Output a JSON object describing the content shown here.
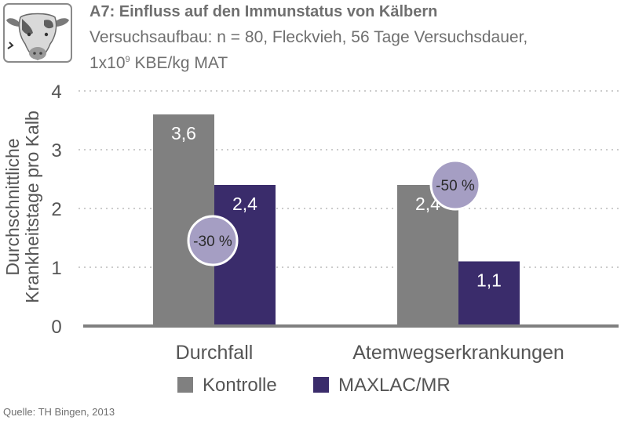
{
  "header": {
    "title": "A7: Einfluss auf den Immunstatus von Kälbern",
    "subtitle_line1": "Versuchsaufbau: n = 80, Fleckvieh, 56 Tage Versuchsdauer,",
    "subtitle_pre": "1x10",
    "subtitle_sup": "9",
    "subtitle_post": " KBE/kg MAT"
  },
  "icons": {
    "logo": "cow-head-icon"
  },
  "colors": {
    "kontrolle": "#808080",
    "maxlac": "#3a2c6b",
    "badge_fill": "#a59ec3",
    "grid": "#bbbbbb",
    "axis": "#808080"
  },
  "chart_data": {
    "type": "bar",
    "categories": [
      "Durchfall",
      "Atemwegserkrankungen"
    ],
    "series": [
      {
        "name": "Kontrolle",
        "values": [
          3.6,
          2.4
        ],
        "labels": [
          "3,6",
          "2,4"
        ]
      },
      {
        "name": "MAXLAC/MR",
        "values": [
          2.4,
          1.1
        ],
        "labels": [
          "2,4",
          "1,1"
        ]
      }
    ],
    "ylabel": [
      "Durchschnittliche",
      "Krankheitstage pro Kalb"
    ],
    "ylim": [
      0,
      4
    ],
    "yticks": [
      0,
      1,
      2,
      3,
      4
    ],
    "grid": true,
    "legend": "bottom-center",
    "annotations": [
      "-30 %",
      "-50 %"
    ]
  },
  "footer": {
    "source": "Quelle: TH Bingen, 2013"
  }
}
